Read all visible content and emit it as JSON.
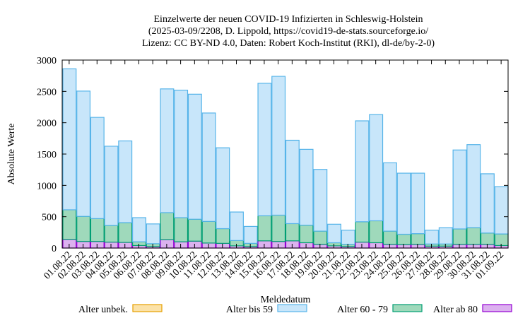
{
  "chart_data": {
    "type": "bar",
    "stacked": true,
    "title": [
      "Einzelwerte der neuen COVID-19 Infizierten in Schleswig-Holstein",
      "(2025-03-09/2208, D. Lippold, https://covid19-de-stats.sourceforge.io/",
      "Lizenz: CC BY-ND 4.0, Daten: Robert Koch-Institut (RKI), dl-de/by-2-0)"
    ],
    "xlabel": "Meldedatum",
    "ylabel": "Absolute Werte",
    "ylim": [
      0,
      3000
    ],
    "yticks": [
      0,
      500,
      1000,
      1500,
      2000,
      2500,
      3000
    ],
    "categories": [
      "01.08.22",
      "02.08.22",
      "03.08.22",
      "04.08.22",
      "05.08.22",
      "06.08.22",
      "07.08.22",
      "08.08.22",
      "09.08.22",
      "10.08.22",
      "11.08.22",
      "12.08.22",
      "13.08.22",
      "14.08.22",
      "15.08.22",
      "16.08.22",
      "17.08.22",
      "18.08.22",
      "19.08.22",
      "20.08.22",
      "21.08.22",
      "22.08.22",
      "23.08.22",
      "24.08.22",
      "25.08.22",
      "26.08.22",
      "27.08.22",
      "28.08.22",
      "29.08.22",
      "30.08.22",
      "31.08.22",
      "01.09.22"
    ],
    "grid": false,
    "legend_position": "bottom",
    "series": [
      {
        "name": "Alter ab 80",
        "color": "#dcb1ef",
        "stroke": "#9400d3",
        "values": [
          140,
          105,
          105,
          95,
          90,
          40,
          25,
          135,
          100,
          110,
          80,
          75,
          35,
          25,
          115,
          105,
          115,
          85,
          60,
          35,
          25,
          95,
          85,
          60,
          55,
          60,
          30,
          30,
          60,
          60,
          60,
          40
        ]
      },
      {
        "name": "Alter 60 - 79",
        "color": "#9fd9bb",
        "stroke": "#009e73",
        "values": [
          470,
          400,
          365,
          265,
          315,
          60,
          45,
          430,
          385,
          350,
          345,
          235,
          85,
          50,
          400,
          420,
          275,
          280,
          210,
          50,
          35,
          325,
          350,
          210,
          165,
          170,
          35,
          35,
          245,
          265,
          180,
          185
        ]
      },
      {
        "name": "Alter bis 59",
        "color": "#c8e6fa",
        "stroke": "#56b4e9",
        "values": [
          2250,
          2000,
          1615,
          1265,
          1305,
          385,
          315,
          1975,
          2035,
          1995,
          1730,
          1290,
          455,
          270,
          2115,
          2215,
          1330,
          1210,
          985,
          295,
          225,
          1610,
          1695,
          1090,
          975,
          965,
          220,
          260,
          1260,
          1325,
          945,
          755
        ]
      },
      {
        "name": "Alter unbek.",
        "color": "#fbe2a8",
        "stroke": "#e69f00",
        "values": [
          0,
          0,
          0,
          0,
          0,
          0,
          0,
          0,
          0,
          0,
          0,
          0,
          0,
          0,
          0,
          0,
          0,
          0,
          0,
          0,
          0,
          0,
          0,
          0,
          0,
          0,
          0,
          0,
          0,
          0,
          0,
          0
        ]
      }
    ],
    "legend": [
      {
        "name": "Alter unbek.",
        "color": "#fbe2a8",
        "stroke": "#e69f00"
      },
      {
        "name": "Alter bis 59",
        "color": "#c8e6fa",
        "stroke": "#56b4e9"
      },
      {
        "name": "Alter 60 - 79",
        "color": "#9fd9bb",
        "stroke": "#009e73"
      },
      {
        "name": "Alter ab 80",
        "color": "#dcb1ef",
        "stroke": "#9400d3"
      }
    ]
  }
}
